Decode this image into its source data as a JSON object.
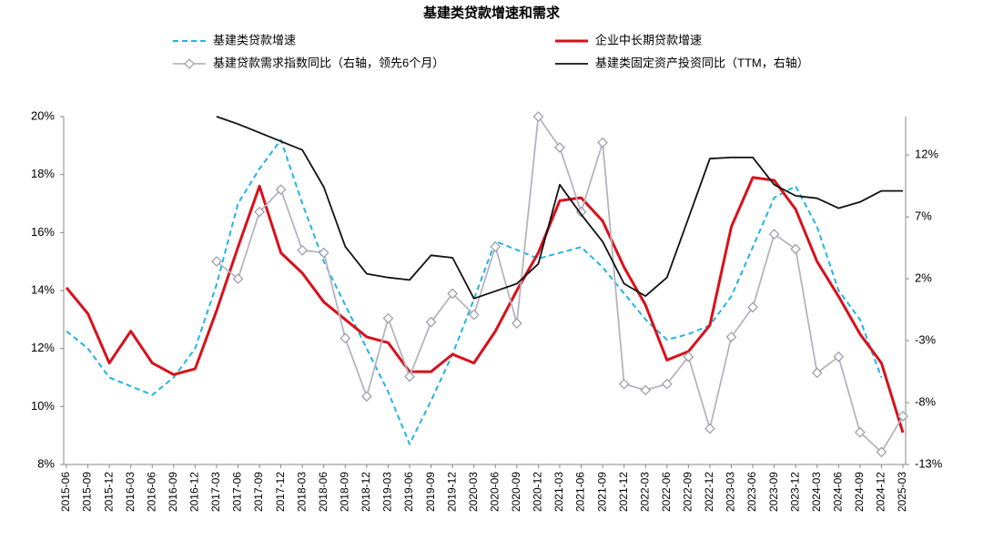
{
  "chart_data": {
    "type": "line",
    "title": "基建类贷款增速和需求",
    "categories": [
      "2015-06",
      "2015-09",
      "2015-12",
      "2016-03",
      "2016-06",
      "2016-09",
      "2016-12",
      "2017-03",
      "2017-06",
      "2017-09",
      "2017-12",
      "2018-03",
      "2018-06",
      "2018-09",
      "2018-12",
      "2019-03",
      "2019-06",
      "2019-09",
      "2019-12",
      "2020-03",
      "2020-06",
      "2020-09",
      "2020-12",
      "2021-03",
      "2021-06",
      "2021-09",
      "2021-12",
      "2022-03",
      "2022-06",
      "2022-09",
      "2022-12",
      "2023-03",
      "2023-06",
      "2023-09",
      "2023-12",
      "2024-03",
      "2024-06",
      "2024-09",
      "2024-12",
      "2025-03"
    ],
    "series": [
      {
        "name": "基建类贷款增速",
        "color": "#1fb5e6",
        "style": "dashed",
        "values": [
          12.6,
          12.0,
          11.0,
          10.7,
          10.4,
          11.0,
          12.0,
          14.2,
          17.0,
          18.2,
          19.2,
          17.0,
          15.0,
          13.5,
          12.0,
          10.5,
          8.7,
          10.2,
          11.8,
          13.7,
          15.7,
          15.4,
          15.1,
          15.3,
          15.5,
          14.8,
          13.9,
          13.0,
          12.3,
          12.5,
          12.8,
          13.8,
          15.5,
          17.2,
          17.6,
          16.2,
          14.0,
          13.0,
          11.0,
          null
        ]
      },
      {
        "name": "企业中长期贷款增速",
        "color": "#d9101a",
        "style": "solid-thick",
        "values": [
          14.1,
          13.2,
          11.5,
          12.6,
          11.5,
          11.1,
          11.3,
          13.3,
          15.5,
          17.6,
          15.3,
          14.6,
          13.6,
          13.0,
          12.4,
          12.2,
          11.2,
          11.2,
          11.8,
          11.5,
          12.6,
          14.0,
          15.3,
          17.1,
          17.2,
          16.4,
          14.8,
          13.5,
          11.6,
          11.9,
          12.8,
          16.2,
          17.9,
          17.8,
          16.8,
          15.0,
          13.8,
          12.5,
          11.5,
          9.1
        ]
      },
      {
        "name": "基建贷款需求指数同比（右轴，领先6个月）",
        "color": "#b4b4c0",
        "style": "marker",
        "axis": "y2",
        "values": [
          null,
          null,
          null,
          null,
          null,
          null,
          null,
          3.4,
          2.0,
          7.4,
          9.2,
          4.3,
          4.1,
          -2.8,
          -7.5,
          -1.2,
          -5.9,
          -1.5,
          0.8,
          -0.9,
          4.6,
          -1.6,
          15.1,
          12.6,
          7.4,
          13.0,
          -6.5,
          -7.0,
          -6.5,
          -4.3,
          -10.1,
          -2.7,
          -0.3,
          5.6,
          4.4,
          -5.6,
          -4.3,
          -10.4,
          -12.0,
          -9.1
        ]
      },
      {
        "name": "基建类固定资产投资同比（TTM，右轴）",
        "color": "#111111",
        "style": "solid",
        "axis": "y2",
        "values": [
          null,
          null,
          null,
          null,
          null,
          null,
          null,
          15.1,
          14.5,
          13.8,
          13.1,
          12.4,
          9.4,
          4.6,
          2.4,
          2.1,
          1.9,
          3.9,
          3.7,
          0.4,
          1.0,
          1.6,
          3.2,
          9.6,
          7.2,
          5.0,
          1.6,
          0.6,
          2.1,
          6.9,
          11.7,
          11.8,
          11.8,
          9.6,
          8.7,
          8.5,
          7.7,
          8.2,
          9.1,
          9.1
        ]
      }
    ],
    "ylim": [
      8,
      20
    ],
    "yticks": [
      {
        "value": 8,
        "label": "8%"
      },
      {
        "value": 10,
        "label": "10%"
      },
      {
        "value": 12,
        "label": "12%"
      },
      {
        "value": 14,
        "label": "14%"
      },
      {
        "value": 16,
        "label": "16%"
      },
      {
        "value": 18,
        "label": "18%"
      },
      {
        "value": 20,
        "label": "20%"
      }
    ],
    "y2lim": [
      -13,
      15.1
    ],
    "y2ticks": [
      {
        "value": -13,
        "label": "-13%"
      },
      {
        "value": -8,
        "label": "-8%"
      },
      {
        "value": -3,
        "label": "-3%"
      },
      {
        "value": 2,
        "label": "2%"
      },
      {
        "value": 7,
        "label": "7%"
      },
      {
        "value": 12,
        "label": "12%"
      }
    ],
    "grid": false
  }
}
